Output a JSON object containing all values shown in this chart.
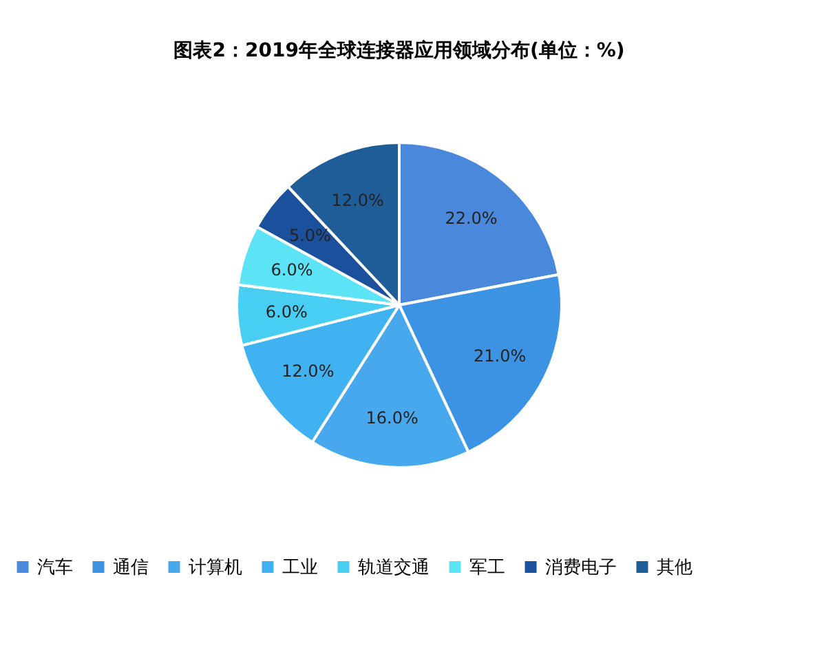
{
  "chart_data": {
    "type": "pie",
    "title": "图表2：2019年全球连接器应用领域分布(单位：%)",
    "categories": [
      "汽车",
      "通信",
      "计算机",
      "工业",
      "轨道交通",
      "军工",
      "消费电子",
      "其他"
    ],
    "values": [
      22.0,
      21.0,
      16.0,
      12.0,
      6.0,
      6.0,
      5.0,
      12.0
    ],
    "value_labels": [
      "22.0%",
      "21.0%",
      "16.0%",
      "12.0%",
      "6.0%",
      "6.0%",
      "5.0%",
      "12.0%"
    ],
    "colors": [
      "#4a88dc",
      "#3d93e3",
      "#48a8ee",
      "#40b2f2",
      "#48cdf3",
      "#5ce4f6",
      "#1b519c",
      "#1e5d98"
    ],
    "legend": "bottom"
  }
}
